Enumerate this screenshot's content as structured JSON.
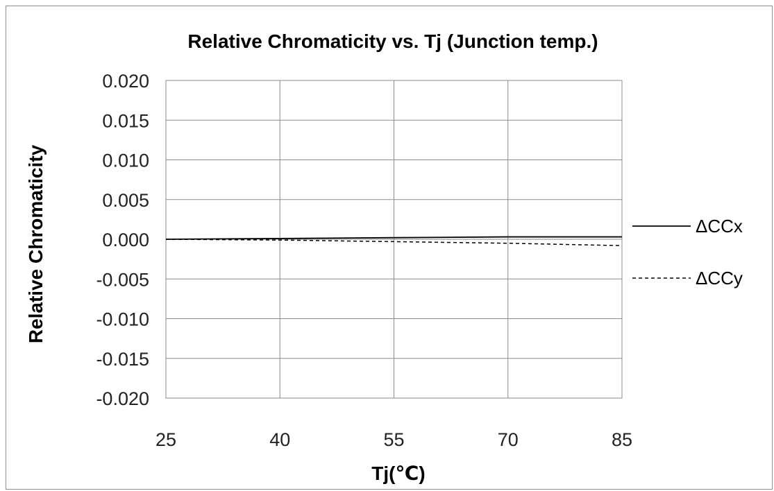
{
  "chart_data": {
    "type": "line",
    "title": "Relative Chromaticity vs. Tj (Junction temp.)",
    "xlabel": "Tj(℃)",
    "ylabel": "Relative Chromaticity",
    "x": [
      25,
      40,
      55,
      70,
      85
    ],
    "xlim": [
      25,
      85
    ],
    "ylim": [
      -0.02,
      0.02
    ],
    "x_ticks": [
      "25",
      "40",
      "55",
      "70",
      "85"
    ],
    "y_ticks": [
      "0.020",
      "0.015",
      "0.010",
      "0.005",
      "0.000",
      "-0.005",
      "-0.010",
      "-0.015",
      "-0.020"
    ],
    "grid": true,
    "legend_position": "right",
    "series": [
      {
        "name": "ΔCCx",
        "values": [
          0.0,
          0.0001,
          0.0002,
          0.0003,
          0.0003
        ],
        "style": "solid",
        "color": "#000000"
      },
      {
        "name": "ΔCCy",
        "values": [
          0.0,
          -0.0001,
          -0.0003,
          -0.0005,
          -0.0008
        ],
        "style": "dashed",
        "color": "#000000"
      }
    ]
  }
}
